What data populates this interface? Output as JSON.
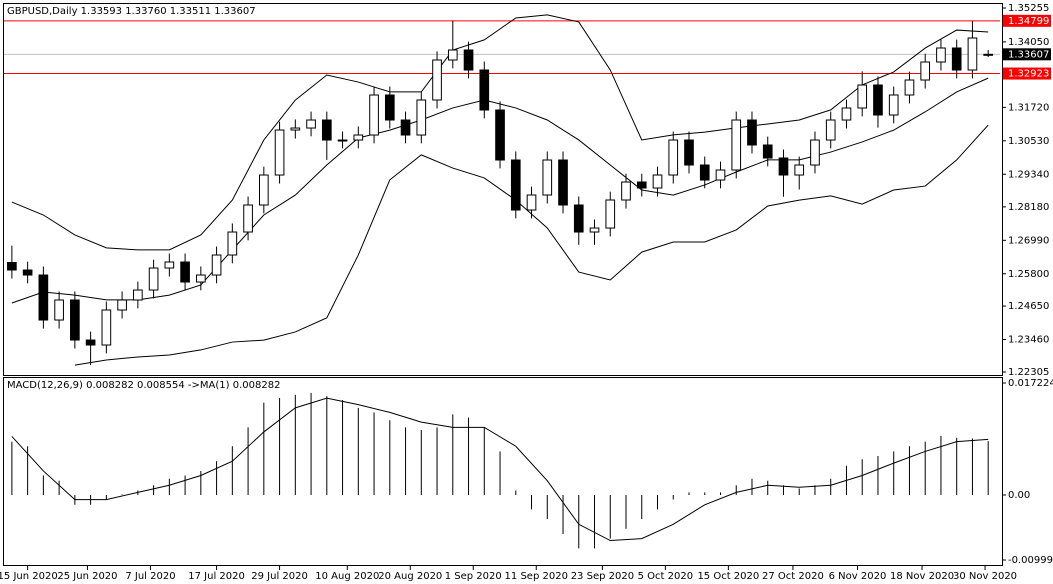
{
  "chart_data": [
    {
      "type": "candlestick",
      "title": "GBPUSD,Daily 1.33593 1.33760 1.33511 1.33607",
      "xlim": [
        -0.5,
        62.75
      ],
      "ylim": [
        1.22198,
        1.35433
      ],
      "yticks": [
        1.35255,
        {
          "value": 1.3405,
          "label": "1.34050"
        },
        {
          "value": 1.3172,
          "label": "1.31720"
        },
        {
          "value": 1.3053,
          "label": "1.30530"
        },
        {
          "value": 1.2934,
          "label": "1.29340"
        },
        {
          "value": 1.2818,
          "label": "1.28180"
        },
        {
          "value": 1.2699,
          "label": "1.26990"
        },
        {
          "value": 1.258,
          "label": "1.25800"
        },
        {
          "value": 1.2465,
          "label": "1.24650"
        },
        {
          "value": 1.2346,
          "label": "1.23460"
        },
        1.22305
      ],
      "grid": false,
      "up_color": "#ffffff",
      "down_color": "#000000",
      "line_color": "#000000",
      "x": [
        0,
        1,
        2,
        3,
        4,
        5,
        6,
        7,
        8,
        9,
        10,
        11,
        12,
        13,
        14,
        15,
        16,
        17,
        18,
        19,
        20,
        21,
        22,
        23,
        24,
        25,
        26,
        27,
        28,
        29,
        30,
        31,
        32,
        33,
        34,
        35,
        36,
        37,
        38,
        39,
        40,
        41,
        42,
        43,
        44,
        45,
        46,
        47,
        48,
        49,
        50,
        51,
        52,
        53,
        54,
        55,
        56,
        57,
        58,
        59,
        60,
        61,
        62
      ],
      "open": [
        1.262,
        1.25933,
        1.25755,
        1.24154,
        1.24866,
        1.23442,
        1.23265,
        1.2451,
        1.24866,
        1.25221,
        1.26004,
        1.26218,
        1.25506,
        1.25755,
        1.26467,
        1.27285,
        1.28246,
        1.29313,
        1.30914,
        1.30985,
        1.3127,
        1.30558,
        1.30558,
        1.30736,
        1.3216,
        1.3127,
        1.30736,
        1.31982,
        1.33405,
        1.33761,
        1.33049,
        1.31626,
        1.29847,
        1.28068,
        1.28602,
        1.29847,
        1.28246,
        1.27285,
        1.27427,
        1.28424,
        1.29064,
        1.28851,
        1.29313,
        1.30558,
        1.29669,
        1.29135,
        1.29491,
        1.3127,
        1.30381,
        1.29918,
        1.29313,
        1.29669,
        1.30558,
        1.3127,
        1.31697,
        1.32515,
        1.31448,
        1.3216,
        1.32693,
        1.33334,
        1.33832,
        1.33049,
        1.33593
      ],
      "high": [
        1.268,
        1.2623,
        1.2606,
        1.2517,
        1.2517,
        1.2374,
        1.2481,
        1.2517,
        1.2552,
        1.263,
        1.2652,
        1.2652,
        1.2606,
        1.2677,
        1.2759,
        1.2855,
        1.2961,
        1.3121,
        1.3129,
        1.3157,
        1.3157,
        1.3086,
        1.3104,
        1.3246,
        1.3246,
        1.3157,
        1.3228,
        1.3371,
        1.348,
        1.3406,
        1.3335,
        1.3193,
        1.3015,
        1.289,
        1.3015,
        1.3015,
        1.2855,
        1.2773,
        1.2872,
        1.2936,
        1.2936,
        1.2961,
        1.3086,
        1.3086,
        1.2997,
        1.2979,
        1.3157,
        1.3157,
        1.3068,
        1.3022,
        1.2997,
        1.3086,
        1.3157,
        1.32,
        1.33,
        1.3282,
        1.3246,
        1.3299,
        1.3363,
        1.3413,
        1.3413,
        1.3479,
        1.3376
      ],
      "low": [
        1.2563,
        1.2546,
        1.2385,
        1.2385,
        1.2314,
        1.2255,
        1.2297,
        1.2421,
        1.2457,
        1.2492,
        1.257,
        1.2521,
        1.2521,
        1.2546,
        1.2617,
        1.2699,
        1.2795,
        1.2901,
        1.3061,
        1.3069,
        1.2985,
        1.3026,
        1.3026,
        1.3044,
        1.3097,
        1.3044,
        1.3044,
        1.3168,
        1.3311,
        1.3275,
        1.3133,
        1.2955,
        1.2777,
        1.2777,
        1.283,
        1.2795,
        1.2683,
        1.2683,
        1.2713,
        1.2812,
        1.2855,
        1.2855,
        1.2901,
        1.2937,
        1.2884,
        1.2884,
        1.2919,
        1.3008,
        1.2962,
        1.2854,
        1.288,
        1.2937,
        1.3026,
        1.3097,
        1.314,
        1.31,
        1.3115,
        1.3186,
        1.3239,
        1.3303,
        1.3275,
        1.3275,
        1.33511
      ],
      "close": [
        1.25933,
        1.25755,
        1.24154,
        1.24866,
        1.23442,
        1.23265,
        1.2451,
        1.24866,
        1.25221,
        1.26004,
        1.26218,
        1.25506,
        1.25755,
        1.26467,
        1.27285,
        1.28246,
        1.29313,
        1.30914,
        1.30985,
        1.3127,
        1.30558,
        1.30558,
        1.30736,
        1.3216,
        1.3127,
        1.30736,
        1.31982,
        1.33405,
        1.33761,
        1.33049,
        1.31626,
        1.29847,
        1.28068,
        1.28602,
        1.29847,
        1.28246,
        1.27285,
        1.27427,
        1.28424,
        1.29064,
        1.28851,
        1.29313,
        1.30558,
        1.29669,
        1.29135,
        1.29491,
        1.3127,
        1.30381,
        1.29918,
        1.29313,
        1.29669,
        1.30558,
        1.3127,
        1.31697,
        1.32515,
        1.31448,
        1.3216,
        1.32693,
        1.33334,
        1.33832,
        1.33049,
        1.34188,
        1.33607
      ],
      "bands": {
        "x": [
          0,
          2,
          4,
          6,
          8,
          10,
          12,
          14,
          16,
          18,
          20,
          22,
          24,
          26,
          28,
          30,
          32,
          34,
          36,
          38,
          40,
          42,
          44,
          46,
          48,
          50,
          52,
          54,
          56,
          58,
          60,
          62
        ],
        "upper": [
          1.2835,
          1.2789,
          1.2718,
          1.2672,
          1.2665,
          1.2665,
          1.2718,
          1.2842,
          1.3056,
          1.3198,
          1.3287,
          1.3262,
          1.3227,
          1.3227,
          1.3376,
          1.3412,
          1.349,
          1.3501,
          1.3476,
          1.3305,
          1.3056,
          1.3074,
          1.3084,
          1.3099,
          1.3113,
          1.3127,
          1.3163,
          1.3252,
          1.3298,
          1.3383,
          1.3447,
          1.344
        ],
        "middle": [
          1.2476,
          1.2515,
          1.2504,
          1.2487,
          1.2487,
          1.2504,
          1.254,
          1.2665,
          1.2789,
          1.286,
          1.2967,
          1.3063,
          1.3091,
          1.3127,
          1.317,
          1.3198,
          1.317,
          1.3127,
          1.3056,
          1.2967,
          1.2878,
          1.286,
          1.2896,
          1.2942,
          1.2985,
          1.2985,
          1.3013,
          1.3049,
          1.3091,
          1.3156,
          1.3227,
          1.3276
        ],
        "lower": [
          null,
          null,
          1.2255,
          1.2273,
          1.2284,
          1.2291,
          1.2309,
          1.2337,
          1.2344,
          1.2373,
          1.2423,
          1.2647,
          1.2914,
          1.3003,
          1.2956,
          1.2921,
          1.2842,
          1.2743,
          1.2586,
          1.2558,
          1.2657,
          1.2693,
          1.2693,
          1.2736,
          1.2821,
          1.2842,
          1.2857,
          1.2828,
          1.2878,
          1.2892,
          1.2985,
          1.3109
        ],
        "color": "#000000"
      },
      "levels": [
        {
          "value": 1.34799,
          "color": "#ff0000"
        },
        {
          "value": 1.32923,
          "color": "#ff0000"
        }
      ],
      "price_line_color": "#c0c0c0"
    },
    {
      "type": "macd",
      "title": "MACD(12,26,9) 0.008282 0.008554 ->MA(1) 0.008282",
      "xlim": [
        -0.5,
        62.75
      ],
      "ylim": [
        -0.01076,
        0.01799
      ],
      "yticks": [
        0.017224,
        {
          "value": 0,
          "label": "0.00"
        },
        -0.009992
      ],
      "xticks": [
        {
          "value": 1,
          "label": "15 Jun 2020"
        },
        {
          "value": 4.8,
          "label": "25 Jun 2020"
        },
        {
          "value": 8.8,
          "label": "7 Jul 2020"
        },
        {
          "value": 13,
          "label": "17 Jul 2020"
        },
        {
          "value": 17,
          "label": "29 Jul 2020"
        },
        {
          "value": 21.3,
          "label": "10 Aug 2020"
        },
        {
          "value": 25.3,
          "label": "20 Aug 2020"
        },
        {
          "value": 29.3,
          "label": "1 Sep 2020"
        },
        {
          "value": 33.3,
          "label": "11 Sep 2020"
        },
        {
          "value": 37.5,
          "label": "23 Sep 2020"
        },
        {
          "value": 41.5,
          "label": "5 Oct 2020"
        },
        {
          "value": 45.5,
          "label": "15 Oct 2020"
        },
        {
          "value": 49.6,
          "label": "27 Oct 2020"
        },
        {
          "value": 53.7,
          "label": "6 Nov 2020"
        },
        {
          "value": 57.8,
          "label": "18 Nov 2020"
        },
        {
          "value": 61.8,
          "label": "30 Nov 2020"
        }
      ],
      "x": [
        0,
        1,
        2,
        3,
        4,
        5,
        6,
        7,
        8,
        9,
        10,
        11,
        12,
        13,
        14,
        15,
        16,
        17,
        18,
        19,
        20,
        21,
        22,
        23,
        24,
        25,
        26,
        27,
        28,
        29,
        30,
        31,
        32,
        33,
        34,
        35,
        36,
        37,
        38,
        39,
        40,
        41,
        42,
        43,
        44,
        45,
        46,
        47,
        48,
        49,
        50,
        51,
        52,
        53,
        54,
        55,
        56,
        57,
        58,
        59,
        60,
        61,
        62
      ],
      "histogram": [
        0.0082,
        0.0075,
        0.003,
        0.0022,
        -0.0015,
        -0.0015,
        -0.0007,
        0.0001,
        0.0007,
        0.0015,
        0.0025,
        0.003,
        0.0037,
        0.0052,
        0.0075,
        0.0104,
        0.0142,
        0.0149,
        0.0154,
        0.0157,
        0.0152,
        0.0146,
        0.0134,
        0.0127,
        0.0115,
        0.0104,
        0.01,
        0.0104,
        0.0124,
        0.0119,
        0.0104,
        0.0067,
        0.0007,
        -0.0022,
        -0.0037,
        -0.006,
        -0.0082,
        -0.0082,
        -0.0067,
        -0.0052,
        -0.0037,
        -0.0022,
        -0.0007,
        0.0004,
        0.0004,
        0.0004,
        0.0015,
        0.0025,
        0.0022,
        0.0015,
        0.001,
        0.0015,
        0.0025,
        0.0045,
        0.0055,
        0.006,
        0.0067,
        0.0075,
        0.0082,
        0.0091,
        0.0088,
        0.0087,
        0.008282
      ],
      "histogram_color": "#000000",
      "signal": {
        "x": [
          0,
          2,
          4,
          6,
          8,
          10,
          12,
          14,
          16,
          18,
          20,
          22,
          24,
          26,
          28,
          30,
          32,
          34,
          36,
          38,
          40,
          42,
          44,
          46,
          48,
          50,
          52,
          54,
          56,
          58,
          60,
          62
        ],
        "values": [
          0.009,
          0.0037,
          -0.0007,
          -0.0007,
          0.0004,
          0.0015,
          0.003,
          0.0052,
          0.0097,
          0.0134,
          0.0149,
          0.0139,
          0.0127,
          0.0112,
          0.0104,
          0.0104,
          0.0075,
          0.0022,
          -0.0045,
          -0.007,
          -0.0067,
          -0.0045,
          -0.0015,
          0.0004,
          0.0015,
          0.0012,
          0.0015,
          0.003,
          0.0049,
          0.0067,
          0.0082,
          0.008554
        ],
        "color": "#000000"
      }
    }
  ]
}
